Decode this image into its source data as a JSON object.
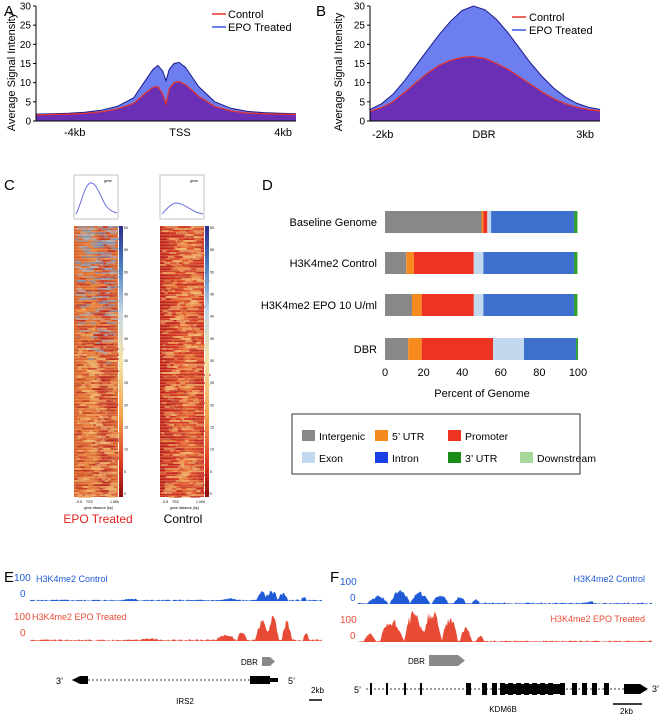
{
  "panels": {
    "a": "A",
    "b": "B",
    "c": "C",
    "d": "D",
    "e": "E",
    "f": "F"
  },
  "colors": {
    "control": "#e8352b",
    "epo": "#3a55e3",
    "overlap": "#6a2fb5",
    "epo_fill": "#6c7ef0",
    "track_blue": "#1f5bd6",
    "track_red": "#e84b35"
  },
  "chart_data": [
    {
      "id": "A",
      "type": "area",
      "ylabel": "Average Signal Intensity",
      "ylim": [
        0,
        30
      ],
      "yticks": [
        0,
        5,
        10,
        15,
        20,
        25,
        30
      ],
      "xlabels": [
        "-4kb",
        "TSS",
        "4kb"
      ],
      "legend": [
        "Control",
        "EPO Treated"
      ],
      "x": [
        -4,
        -3.5,
        -3,
        -2.5,
        -2,
        -1.5,
        -1,
        -0.8,
        -0.6,
        -0.4,
        -0.25,
        -0.1,
        0,
        0.1,
        0.25,
        0.4,
        0.6,
        0.8,
        1,
        1.5,
        2,
        2.5,
        3,
        3.5,
        4
      ],
      "series": [
        {
          "name": "EPO Treated",
          "values": [
            1.8,
            1.9,
            2.0,
            2.3,
            2.8,
            3.8,
            6.0,
            8.5,
            11.0,
            13.5,
            14.5,
            13,
            10.5,
            13.5,
            15.0,
            15.3,
            14.0,
            11.5,
            9.0,
            5.0,
            3.3,
            2.5,
            2.2,
            2.0,
            1.9
          ]
        },
        {
          "name": "Control",
          "values": [
            1.6,
            1.7,
            1.8,
            2.0,
            2.4,
            3.1,
            4.6,
            6.0,
            7.5,
            8.8,
            9.0,
            7,
            4.5,
            8.5,
            10.0,
            10.3,
            9.5,
            8.0,
            6.5,
            3.8,
            2.6,
            2.1,
            1.9,
            1.8,
            1.7
          ]
        }
      ]
    },
    {
      "id": "B",
      "type": "area",
      "ylabel": "Average Signal Intensity",
      "ylim": [
        0,
        30
      ],
      "yticks": [
        0,
        5,
        10,
        15,
        20,
        25,
        30
      ],
      "xlabels": [
        "-2kb",
        "DBR",
        "3kb"
      ],
      "legend": [
        "Control",
        "EPO Treated"
      ],
      "x": [
        -2,
        -1.75,
        -1.5,
        -1.25,
        -1,
        -0.75,
        -0.5,
        -0.25,
        0,
        0.25,
        0.5,
        0.75,
        1,
        1.25,
        1.5,
        1.75,
        2,
        2.25,
        2.5,
        2.75,
        3
      ],
      "series": [
        {
          "name": "EPO Treated",
          "values": [
            3.0,
            4.5,
            7.0,
            10.5,
            14.5,
            18.5,
            22.5,
            26.0,
            28.8,
            30.0,
            29.0,
            26.5,
            23.0,
            19.0,
            15.0,
            11.5,
            8.5,
            6.2,
            4.6,
            3.6,
            3.0
          ]
        },
        {
          "name": "Control",
          "values": [
            2.5,
            3.5,
            5.0,
            7.5,
            10.0,
            12.5,
            14.5,
            15.8,
            16.6,
            16.8,
            16.3,
            15.0,
            13.5,
            11.5,
            9.5,
            7.5,
            5.8,
            4.5,
            3.6,
            3.0,
            2.6
          ]
        }
      ]
    },
    {
      "id": "D",
      "type": "bar",
      "xlabel": "Percent of Genome",
      "xlim": [
        0,
        100
      ],
      "xticks": [
        0,
        20,
        40,
        60,
        80,
        100
      ],
      "categories": [
        "Baseline Genome",
        "H3K4me2 Control",
        "H3K4me2 EPO 10 U/ml",
        "DBR"
      ],
      "series": [
        {
          "name": "Intergenic",
          "color": "#888888",
          "values": [
            50,
            11,
            14,
            12
          ]
        },
        {
          "name": "5' UTR",
          "color": "#f58a1f",
          "values": [
            1,
            4,
            5,
            7
          ]
        },
        {
          "name": "Promoter",
          "color": "#ee3322",
          "values": [
            2,
            31,
            27,
            37
          ]
        },
        {
          "name": "Exon",
          "color": "#c2d8ee",
          "values": [
            2,
            5,
            5,
            16
          ]
        },
        {
          "name": "Intron",
          "color": "#3c70cc",
          "values": [
            43,
            47,
            47,
            27
          ]
        },
        {
          "name": "3' UTR",
          "color": "#2e9e2e",
          "values": [
            1.5,
            1.5,
            1.5,
            1
          ]
        },
        {
          "name": "Downstream",
          "color": "#a6d89a",
          "values": [
            0.5,
            0.5,
            0.5,
            0
          ]
        }
      ]
    }
  ],
  "heatmap": {
    "left_label": "EPO Treated",
    "right_label": "Control",
    "legend_gene": "gene",
    "axis_tick_left": "-0.5",
    "axis_tick_mid": "TSS",
    "axis_tick_right": "1.0Kb",
    "axis_caption": "gene distance (bp)",
    "colorbar_ticks": [
      "60",
      "55",
      "50",
      "45",
      "40",
      "35",
      "30",
      "25",
      "20",
      "15",
      "10",
      "5",
      "0"
    ]
  },
  "legend_d": {
    "items": [
      {
        "label": "Intergenic",
        "color": "#888888"
      },
      {
        "label": "5’ UTR",
        "color": "#f58a1f"
      },
      {
        "label": "Promoter",
        "color": "#ee3322"
      },
      {
        "label": "Exon",
        "color": "#c2d8ee"
      },
      {
        "label": "Intron",
        "color": "#1a3fe6"
      },
      {
        "label": "3’ UTR",
        "color": "#1a8c1a"
      },
      {
        "label": "Downstream",
        "color": "#a6d89a"
      }
    ]
  },
  "tracks_e": {
    "control_label": "H3K4me2 Control",
    "control_max": "100",
    "control_min": "0",
    "epo_label": "H3K4me2 EPO Treated",
    "epo_max": "100",
    "epo_min": "0",
    "dbr": "DBR",
    "gene": "IRS2",
    "end3": "3’",
    "end5": "5’",
    "scale": "2kb"
  },
  "tracks_f": {
    "control_label": "H3K4me2 Control",
    "control_max": "100",
    "control_min": "0",
    "epo_label": "H3K4me2 EPO Treated",
    "epo_max": "100",
    "epo_min": "0",
    "dbr": "DBR",
    "gene": "KDM6B",
    "end3": "3’",
    "end5": "5’",
    "scale": "2kb"
  }
}
